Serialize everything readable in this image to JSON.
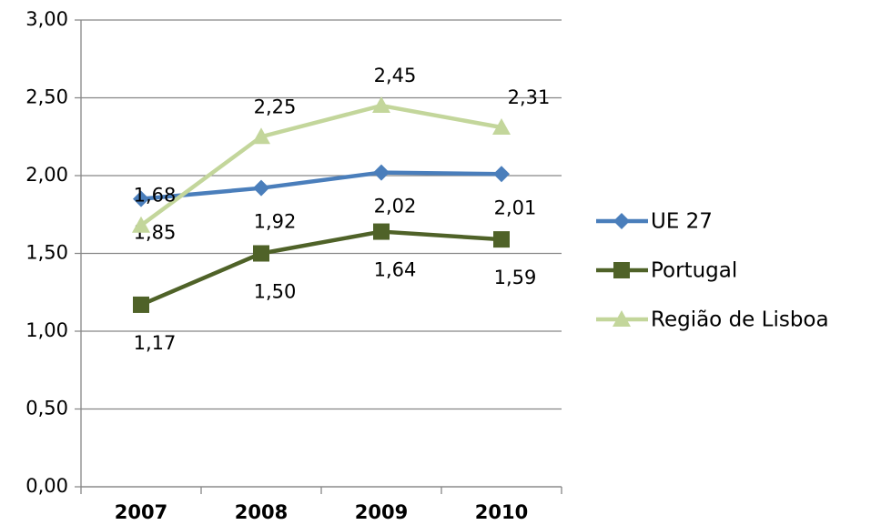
{
  "chart_data": {
    "type": "line",
    "categories": [
      "2007",
      "2008",
      "2009",
      "2010"
    ],
    "series": [
      {
        "name": "UE 27",
        "color": "#4a7ebb",
        "marker": "diamond",
        "values": [
          1.85,
          1.92,
          2.02,
          2.01
        ],
        "value_labels": [
          "1,85",
          "1,92",
          "2,02",
          "2,01"
        ]
      },
      {
        "name": "Portugal",
        "color": "#4f6228",
        "marker": "square",
        "values": [
          1.17,
          1.5,
          1.64,
          1.59
        ],
        "value_labels": [
          "1,17",
          "1,50",
          "1,64",
          "1,59"
        ]
      },
      {
        "name": "Região de Lisboa",
        "color": "#c3d69b",
        "marker": "triangle",
        "values": [
          1.68,
          2.25,
          2.45,
          2.31
        ],
        "value_labels": [
          "1,68",
          "2,25",
          "2,45",
          "2,31"
        ]
      }
    ],
    "ylim": [
      0,
      3
    ],
    "yticks": [
      {
        "value": 0,
        "label": "0,00"
      },
      {
        "value": 0.5,
        "label": "0,50"
      },
      {
        "value": 1,
        "label": "1,00"
      },
      {
        "value": 1.5,
        "label": "1,50"
      },
      {
        "value": 2,
        "label": "2,00"
      },
      {
        "value": 2.5,
        "label": "2,50"
      },
      {
        "value": 3,
        "label": "3,00"
      }
    ],
    "grid": true,
    "legend": "right"
  }
}
